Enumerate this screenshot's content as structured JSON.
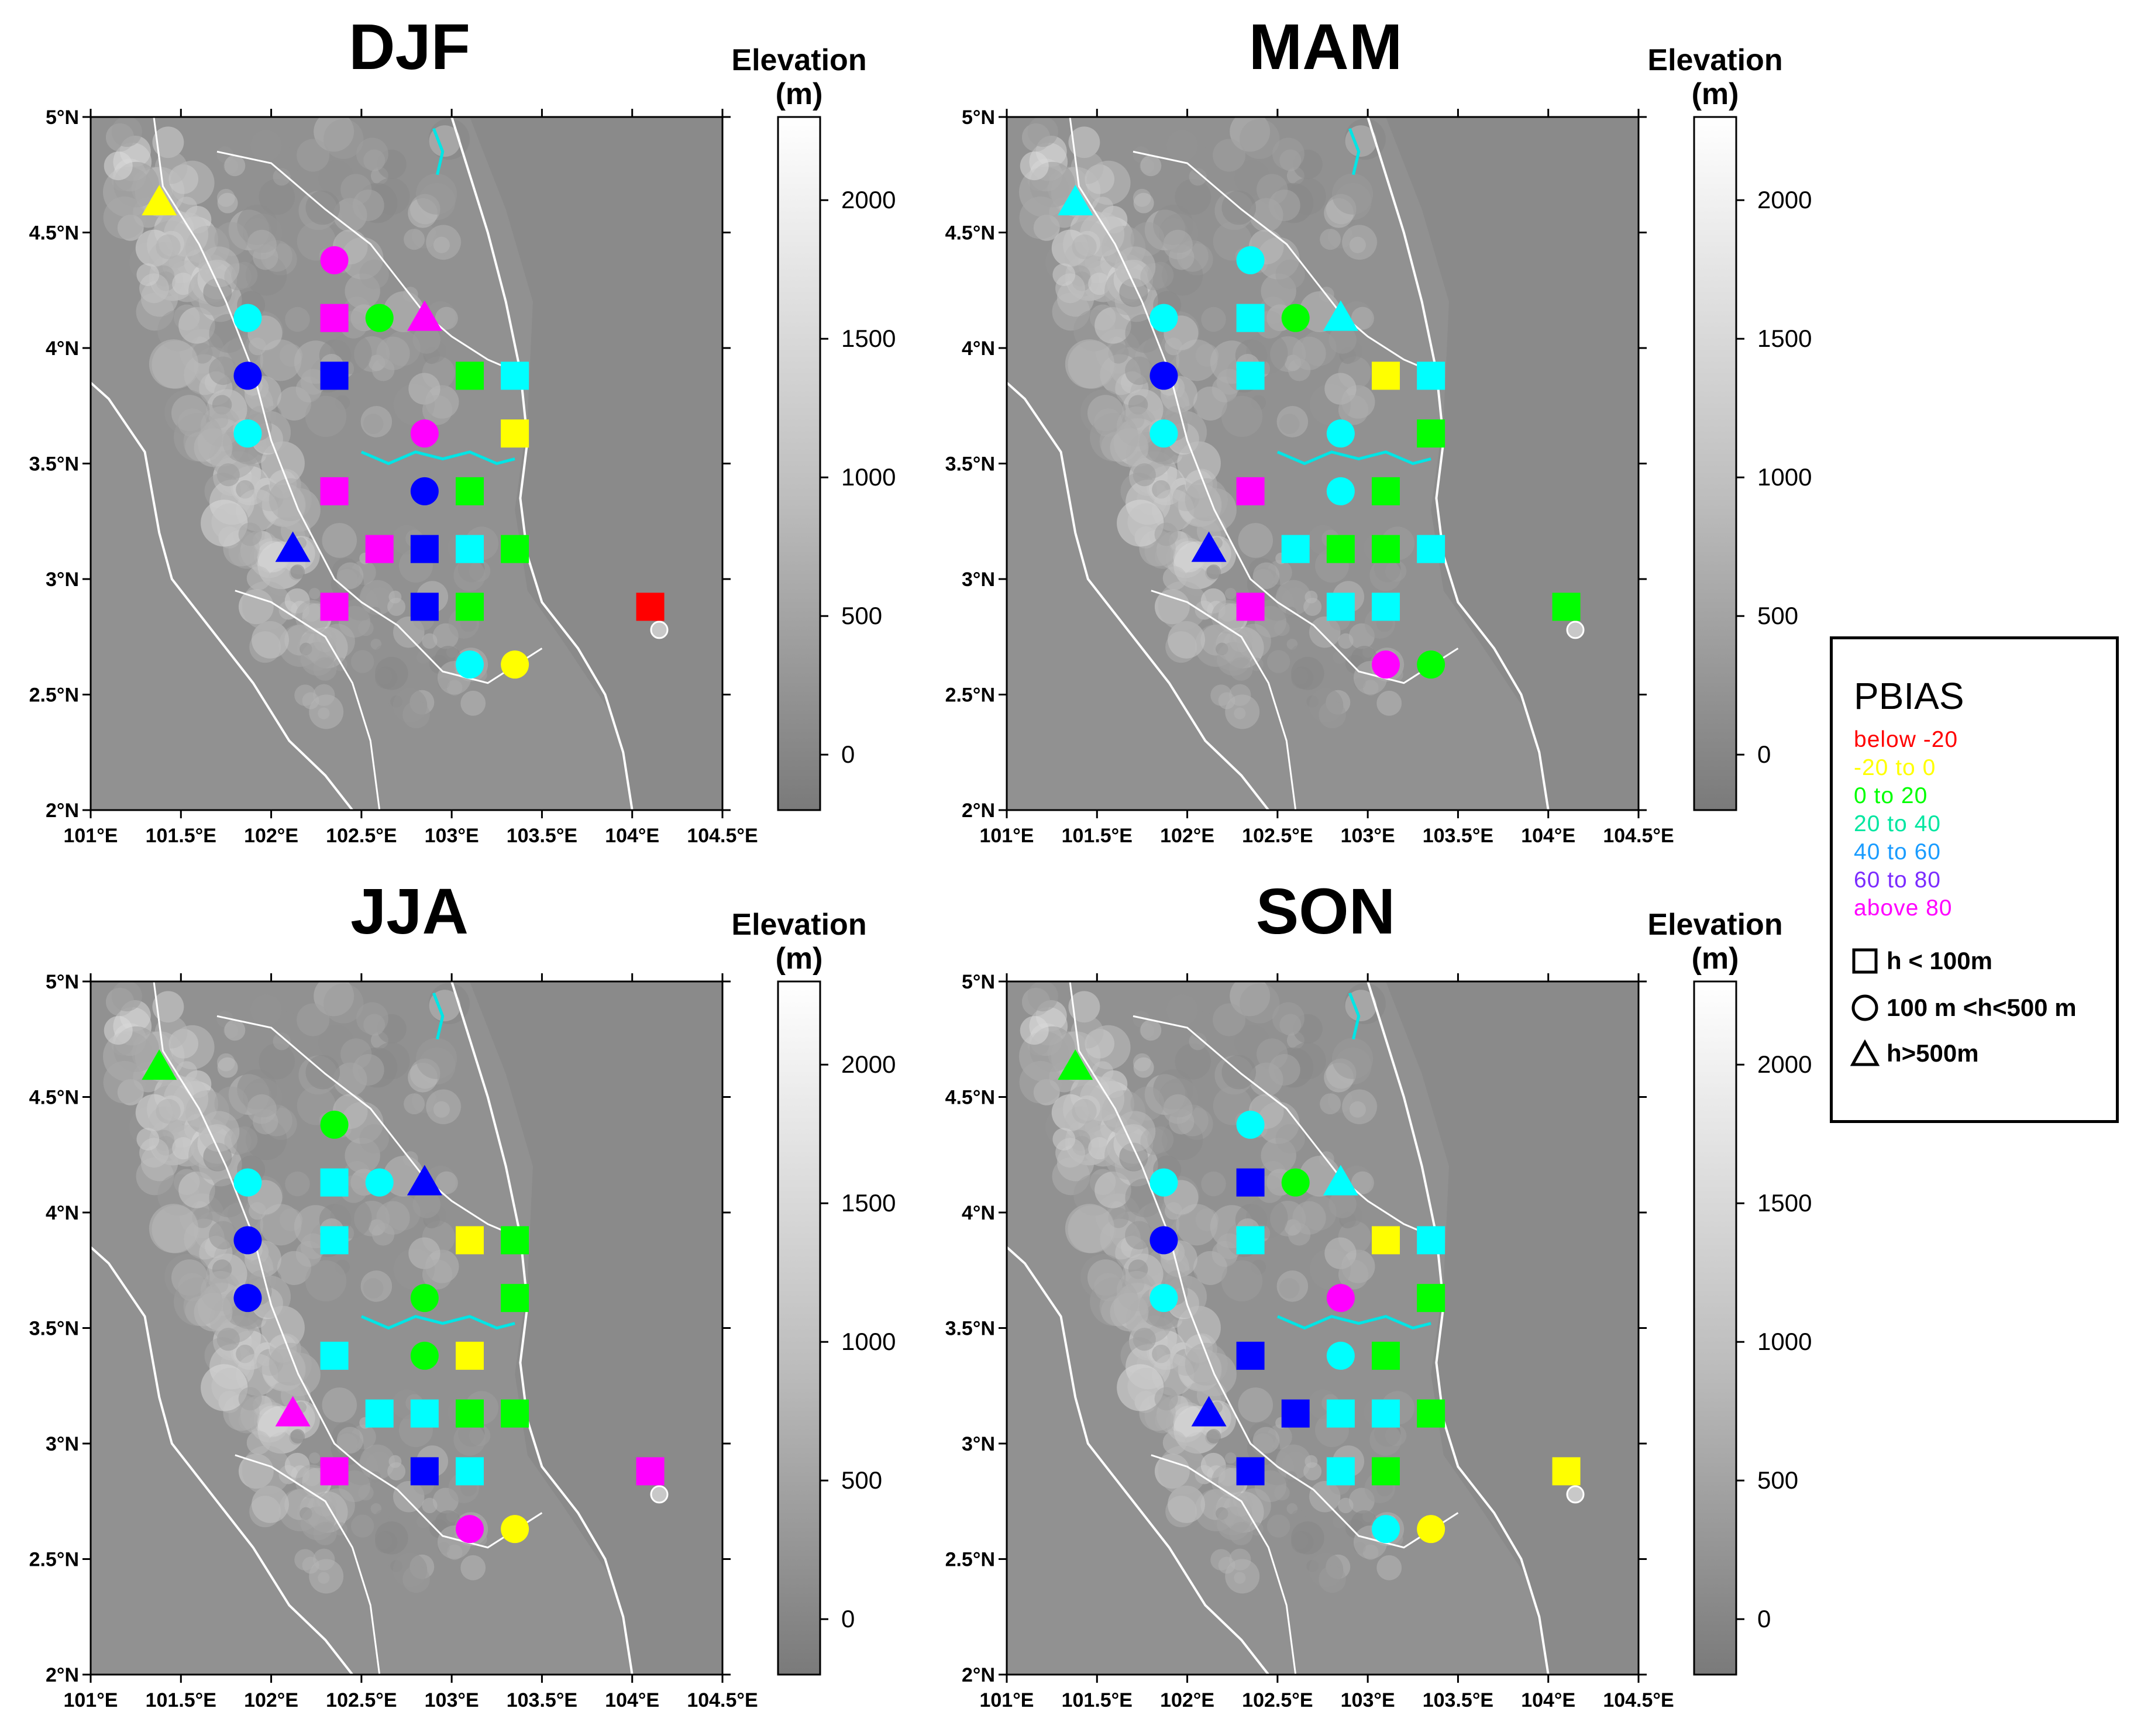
{
  "figure": {
    "elevation_title_line1": "Elevation",
    "elevation_title_line2": "(m)",
    "lat_ticks": [
      "5°N",
      "4.5°N",
      "4°N",
      "3.5°N",
      "3°N",
      "2.5°N",
      "2°N"
    ],
    "lon_ticks": [
      "101°E",
      "101.5°E",
      "102°E",
      "102.5°E",
      "103°E",
      "103.5°E",
      "104°E",
      "104.5°E"
    ],
    "elevation_ticks": [
      "2000",
      "1500",
      "1000",
      "500",
      "0"
    ]
  },
  "legend": {
    "title": "PBIAS",
    "classes": [
      {
        "label": "below  -20",
        "color": "#ff0000"
      },
      {
        "label": "-20  to  0",
        "color": "#ffff00"
      },
      {
        "label": "0  to  20",
        "color": "#00ff00"
      },
      {
        "label": "20  to  40",
        "color": "#00e6a0"
      },
      {
        "label": "40  to  60",
        "color": "#1a9cff"
      },
      {
        "label": "60  to  80",
        "color": "#7b2cff"
      },
      {
        "label": "above  80",
        "color": "#ff00ff"
      }
    ],
    "shapes": [
      {
        "symbol": "square",
        "label": "h < 100m"
      },
      {
        "symbol": "circle",
        "label": "100 m <h<500 m"
      },
      {
        "symbol": "triangle",
        "label": "h>500m"
      }
    ]
  },
  "chart_data": {
    "type": "scatter",
    "description_units": {
      "x": "longitude °E",
      "y": "latitude °N",
      "elevation_range_m": [
        -200,
        2300
      ]
    },
    "palette": {
      "red": "#ff0000",
      "yellow": "#ffff00",
      "green": "#00ff00",
      "cyan": "#00ffff",
      "blue": "#0000ff",
      "magenta": "#ff00ff"
    },
    "xlim": [
      101,
      104.5
    ],
    "ylim": [
      2,
      5
    ],
    "panels": [
      {
        "title": "DJF",
        "stations": [
          {
            "lon": 101.38,
            "lat": 4.63,
            "shape": "triangle",
            "color": "yellow"
          },
          {
            "lon": 102.35,
            "lat": 4.38,
            "shape": "circle",
            "color": "magenta"
          },
          {
            "lon": 101.87,
            "lat": 4.13,
            "shape": "circle",
            "color": "cyan"
          },
          {
            "lon": 102.35,
            "lat": 4.13,
            "shape": "square",
            "color": "magenta"
          },
          {
            "lon": 102.6,
            "lat": 4.13,
            "shape": "circle",
            "color": "green"
          },
          {
            "lon": 102.85,
            "lat": 4.13,
            "shape": "triangle",
            "color": "magenta"
          },
          {
            "lon": 101.87,
            "lat": 3.88,
            "shape": "circle",
            "color": "blue"
          },
          {
            "lon": 102.35,
            "lat": 3.88,
            "shape": "square",
            "color": "blue"
          },
          {
            "lon": 103.1,
            "lat": 3.88,
            "shape": "square",
            "color": "green"
          },
          {
            "lon": 103.35,
            "lat": 3.88,
            "shape": "square",
            "color": "cyan"
          },
          {
            "lon": 101.87,
            "lat": 3.63,
            "shape": "circle",
            "color": "cyan"
          },
          {
            "lon": 102.85,
            "lat": 3.63,
            "shape": "circle",
            "color": "magenta"
          },
          {
            "lon": 103.35,
            "lat": 3.63,
            "shape": "square",
            "color": "yellow"
          },
          {
            "lon": 102.35,
            "lat": 3.38,
            "shape": "square",
            "color": "magenta"
          },
          {
            "lon": 102.85,
            "lat": 3.38,
            "shape": "circle",
            "color": "blue"
          },
          {
            "lon": 103.1,
            "lat": 3.38,
            "shape": "square",
            "color": "green"
          },
          {
            "lon": 102.12,
            "lat": 3.13,
            "shape": "triangle",
            "color": "blue"
          },
          {
            "lon": 102.6,
            "lat": 3.13,
            "shape": "square",
            "color": "magenta"
          },
          {
            "lon": 102.85,
            "lat": 3.13,
            "shape": "square",
            "color": "blue"
          },
          {
            "lon": 103.1,
            "lat": 3.13,
            "shape": "square",
            "color": "cyan"
          },
          {
            "lon": 103.35,
            "lat": 3.13,
            "shape": "square",
            "color": "green"
          },
          {
            "lon": 102.35,
            "lat": 2.88,
            "shape": "square",
            "color": "magenta"
          },
          {
            "lon": 102.85,
            "lat": 2.88,
            "shape": "square",
            "color": "blue"
          },
          {
            "lon": 103.1,
            "lat": 2.88,
            "shape": "square",
            "color": "green"
          },
          {
            "lon": 104.1,
            "lat": 2.88,
            "shape": "square",
            "color": "red"
          },
          {
            "lon": 103.1,
            "lat": 2.63,
            "shape": "circle",
            "color": "cyan"
          },
          {
            "lon": 103.35,
            "lat": 2.63,
            "shape": "circle",
            "color": "yellow"
          }
        ]
      },
      {
        "title": "MAM",
        "stations": [
          {
            "lon": 101.38,
            "lat": 4.63,
            "shape": "triangle",
            "color": "cyan"
          },
          {
            "lon": 102.35,
            "lat": 4.38,
            "shape": "circle",
            "color": "cyan"
          },
          {
            "lon": 101.87,
            "lat": 4.13,
            "shape": "circle",
            "color": "cyan"
          },
          {
            "lon": 102.35,
            "lat": 4.13,
            "shape": "square",
            "color": "cyan"
          },
          {
            "lon": 102.6,
            "lat": 4.13,
            "shape": "circle",
            "color": "green"
          },
          {
            "lon": 102.85,
            "lat": 4.13,
            "shape": "triangle",
            "color": "cyan"
          },
          {
            "lon": 101.87,
            "lat": 3.88,
            "shape": "circle",
            "color": "blue"
          },
          {
            "lon": 102.35,
            "lat": 3.88,
            "shape": "square",
            "color": "cyan"
          },
          {
            "lon": 103.1,
            "lat": 3.88,
            "shape": "square",
            "color": "yellow"
          },
          {
            "lon": 103.35,
            "lat": 3.88,
            "shape": "square",
            "color": "cyan"
          },
          {
            "lon": 101.87,
            "lat": 3.63,
            "shape": "circle",
            "color": "cyan"
          },
          {
            "lon": 102.85,
            "lat": 3.63,
            "shape": "circle",
            "color": "cyan"
          },
          {
            "lon": 103.35,
            "lat": 3.63,
            "shape": "square",
            "color": "green"
          },
          {
            "lon": 102.35,
            "lat": 3.38,
            "shape": "square",
            "color": "magenta"
          },
          {
            "lon": 102.85,
            "lat": 3.38,
            "shape": "circle",
            "color": "cyan"
          },
          {
            "lon": 103.1,
            "lat": 3.38,
            "shape": "square",
            "color": "green"
          },
          {
            "lon": 102.12,
            "lat": 3.13,
            "shape": "triangle",
            "color": "blue"
          },
          {
            "lon": 102.6,
            "lat": 3.13,
            "shape": "square",
            "color": "cyan"
          },
          {
            "lon": 102.85,
            "lat": 3.13,
            "shape": "square",
            "color": "green"
          },
          {
            "lon": 103.1,
            "lat": 3.13,
            "shape": "square",
            "color": "green"
          },
          {
            "lon": 103.35,
            "lat": 3.13,
            "shape": "square",
            "color": "cyan"
          },
          {
            "lon": 102.35,
            "lat": 2.88,
            "shape": "square",
            "color": "magenta"
          },
          {
            "lon": 102.85,
            "lat": 2.88,
            "shape": "square",
            "color": "cyan"
          },
          {
            "lon": 103.1,
            "lat": 2.88,
            "shape": "square",
            "color": "cyan"
          },
          {
            "lon": 104.1,
            "lat": 2.88,
            "shape": "square",
            "color": "green"
          },
          {
            "lon": 103.1,
            "lat": 2.63,
            "shape": "circle",
            "color": "magenta"
          },
          {
            "lon": 103.35,
            "lat": 2.63,
            "shape": "circle",
            "color": "green"
          }
        ]
      },
      {
        "title": "JJA",
        "stations": [
          {
            "lon": 101.38,
            "lat": 4.63,
            "shape": "triangle",
            "color": "green"
          },
          {
            "lon": 102.35,
            "lat": 4.38,
            "shape": "circle",
            "color": "green"
          },
          {
            "lon": 101.87,
            "lat": 4.13,
            "shape": "circle",
            "color": "cyan"
          },
          {
            "lon": 102.35,
            "lat": 4.13,
            "shape": "square",
            "color": "cyan"
          },
          {
            "lon": 102.6,
            "lat": 4.13,
            "shape": "circle",
            "color": "cyan"
          },
          {
            "lon": 102.85,
            "lat": 4.13,
            "shape": "triangle",
            "color": "blue"
          },
          {
            "lon": 101.87,
            "lat": 3.88,
            "shape": "circle",
            "color": "blue"
          },
          {
            "lon": 102.35,
            "lat": 3.88,
            "shape": "square",
            "color": "cyan"
          },
          {
            "lon": 103.1,
            "lat": 3.88,
            "shape": "square",
            "color": "yellow"
          },
          {
            "lon": 103.35,
            "lat": 3.88,
            "shape": "square",
            "color": "green"
          },
          {
            "lon": 101.87,
            "lat": 3.63,
            "shape": "circle",
            "color": "blue"
          },
          {
            "lon": 102.85,
            "lat": 3.63,
            "shape": "circle",
            "color": "green"
          },
          {
            "lon": 103.35,
            "lat": 3.63,
            "shape": "square",
            "color": "green"
          },
          {
            "lon": 102.35,
            "lat": 3.38,
            "shape": "square",
            "color": "cyan"
          },
          {
            "lon": 102.85,
            "lat": 3.38,
            "shape": "circle",
            "color": "green"
          },
          {
            "lon": 103.1,
            "lat": 3.38,
            "shape": "square",
            "color": "yellow"
          },
          {
            "lon": 102.12,
            "lat": 3.13,
            "shape": "triangle",
            "color": "magenta"
          },
          {
            "lon": 102.6,
            "lat": 3.13,
            "shape": "square",
            "color": "cyan"
          },
          {
            "lon": 102.85,
            "lat": 3.13,
            "shape": "square",
            "color": "cyan"
          },
          {
            "lon": 103.1,
            "lat": 3.13,
            "shape": "square",
            "color": "green"
          },
          {
            "lon": 103.35,
            "lat": 3.13,
            "shape": "square",
            "color": "green"
          },
          {
            "lon": 102.35,
            "lat": 2.88,
            "shape": "square",
            "color": "magenta"
          },
          {
            "lon": 102.85,
            "lat": 2.88,
            "shape": "square",
            "color": "blue"
          },
          {
            "lon": 103.1,
            "lat": 2.88,
            "shape": "square",
            "color": "cyan"
          },
          {
            "lon": 104.1,
            "lat": 2.88,
            "shape": "square",
            "color": "magenta"
          },
          {
            "lon": 103.1,
            "lat": 2.63,
            "shape": "circle",
            "color": "magenta"
          },
          {
            "lon": 103.35,
            "lat": 2.63,
            "shape": "circle",
            "color": "yellow"
          }
        ]
      },
      {
        "title": "SON",
        "stations": [
          {
            "lon": 101.38,
            "lat": 4.63,
            "shape": "triangle",
            "color": "green"
          },
          {
            "lon": 102.35,
            "lat": 4.38,
            "shape": "circle",
            "color": "cyan"
          },
          {
            "lon": 101.87,
            "lat": 4.13,
            "shape": "circle",
            "color": "cyan"
          },
          {
            "lon": 102.35,
            "lat": 4.13,
            "shape": "square",
            "color": "blue"
          },
          {
            "lon": 102.6,
            "lat": 4.13,
            "shape": "circle",
            "color": "green"
          },
          {
            "lon": 102.85,
            "lat": 4.13,
            "shape": "triangle",
            "color": "cyan"
          },
          {
            "lon": 101.87,
            "lat": 3.88,
            "shape": "circle",
            "color": "blue"
          },
          {
            "lon": 102.35,
            "lat": 3.88,
            "shape": "square",
            "color": "cyan"
          },
          {
            "lon": 103.1,
            "lat": 3.88,
            "shape": "square",
            "color": "yellow"
          },
          {
            "lon": 103.35,
            "lat": 3.88,
            "shape": "square",
            "color": "cyan"
          },
          {
            "lon": 101.87,
            "lat": 3.63,
            "shape": "circle",
            "color": "cyan"
          },
          {
            "lon": 102.85,
            "lat": 3.63,
            "shape": "circle",
            "color": "magenta"
          },
          {
            "lon": 103.35,
            "lat": 3.63,
            "shape": "square",
            "color": "green"
          },
          {
            "lon": 102.35,
            "lat": 3.38,
            "shape": "square",
            "color": "blue"
          },
          {
            "lon": 102.85,
            "lat": 3.38,
            "shape": "circle",
            "color": "cyan"
          },
          {
            "lon": 103.1,
            "lat": 3.38,
            "shape": "square",
            "color": "green"
          },
          {
            "lon": 102.12,
            "lat": 3.13,
            "shape": "triangle",
            "color": "blue"
          },
          {
            "lon": 102.6,
            "lat": 3.13,
            "shape": "square",
            "color": "blue"
          },
          {
            "lon": 102.85,
            "lat": 3.13,
            "shape": "square",
            "color": "cyan"
          },
          {
            "lon": 103.1,
            "lat": 3.13,
            "shape": "square",
            "color": "cyan"
          },
          {
            "lon": 103.35,
            "lat": 3.13,
            "shape": "square",
            "color": "green"
          },
          {
            "lon": 102.35,
            "lat": 2.88,
            "shape": "square",
            "color": "blue"
          },
          {
            "lon": 102.85,
            "lat": 2.88,
            "shape": "square",
            "color": "cyan"
          },
          {
            "lon": 103.1,
            "lat": 2.88,
            "shape": "square",
            "color": "green"
          },
          {
            "lon": 104.1,
            "lat": 2.88,
            "shape": "square",
            "color": "yellow"
          },
          {
            "lon": 103.1,
            "lat": 2.63,
            "shape": "circle",
            "color": "cyan"
          },
          {
            "lon": 103.35,
            "lat": 2.63,
            "shape": "circle",
            "color": "yellow"
          }
        ]
      }
    ]
  }
}
